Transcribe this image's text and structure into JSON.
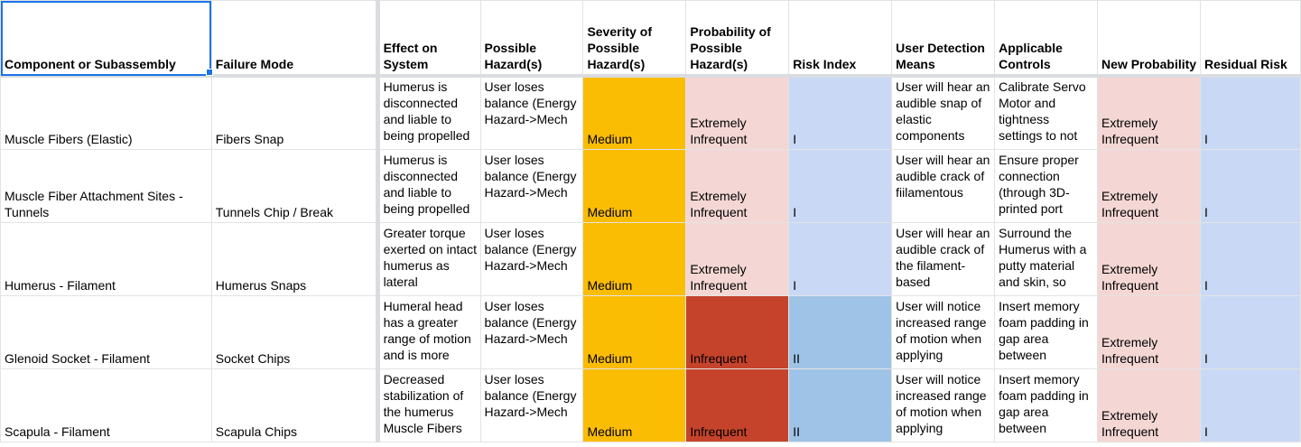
{
  "headers": [
    "Component or Subassembly",
    "Failure Mode",
    "Effect on System",
    "Possible Hazard(s)",
    "Severity of Possible Hazard(s)",
    "Probability of Possible Hazard(s)",
    "Risk Index",
    "User Detection Means",
    "Applicable Controls",
    "New Probability",
    "Residual Risk"
  ],
  "rows": [
    {
      "component": "Muscle Fibers (Elastic)",
      "failure": "Fibers Snap",
      "effect": "Humerus is disconnected and liable to being propelled ",
      "hazard": "User loses balance (Energy Hazard->Mech",
      "severity": "Medium",
      "probability": "Extremely Infrequent",
      "risk": "I",
      "detection": "User will hear an audible snap of elastic components",
      "controls": "Calibrate Servo Motor and tightness settings to not",
      "new_probability": "Extremely Infrequent",
      "residual": "I"
    },
    {
      "component": "Muscle Fiber Attachment Sites - Tunnels",
      "failure": "Tunnels Chip / Break",
      "effect": "Humerus is disconnected and liable to being propelled",
      "hazard": "User loses balance (Energy Hazard->Mech",
      "severity": "Medium",
      "probability": "Extremely Infrequent",
      "risk": "I",
      "detection": "User will hear an audible crack of fiilamentous",
      "controls": "Ensure proper connection (through 3D-printed port",
      "new_probability": "Extremely Infrequent",
      "residual": "I"
    },
    {
      "component": "Humerus - Filament",
      "failure": "Humerus Snaps",
      "effect": "Greater torque exerted on intact humerus as lateral",
      "hazard": "User loses balance (Energy Hazard->Mech",
      "severity": "Medium",
      "probability": "Extremely Infrequent",
      "risk": "I",
      "detection": "User will hear an audible crack of the filament-based",
      "controls": "Surround the Humerus with a putty material and skin, so",
      "new_probability": "Extremely Infrequent",
      "residual": "I"
    },
    {
      "component": "Glenoid Socket - Filament",
      "failure": "Socket Chips",
      "effect": "Humeral head has a greater range of motion and is more",
      "hazard": "User loses balance (Energy Hazard->Mech",
      "severity": "Medium",
      "probability": "Infrequent",
      "risk": "II",
      "detection": "User will notice increased range of motion when applying",
      "controls": "Insert memory foam padding in gap area between",
      "new_probability": "Extremely Infrequent",
      "residual": "I"
    },
    {
      "component": "Scapula - Filament",
      "failure": "Scapula Chips",
      "effect": "Decreased stabilization of the humerus Muscle Fibers",
      "hazard": "User loses balance (Energy Hazard->Mech",
      "severity": "Medium",
      "probability": "Infrequent",
      "risk": "II",
      "detection": "User will notice increased range of motion when applying",
      "controls": "Insert memory foam padding in gap area between",
      "new_probability": "Extremely Infrequent",
      "residual": "I"
    }
  ]
}
